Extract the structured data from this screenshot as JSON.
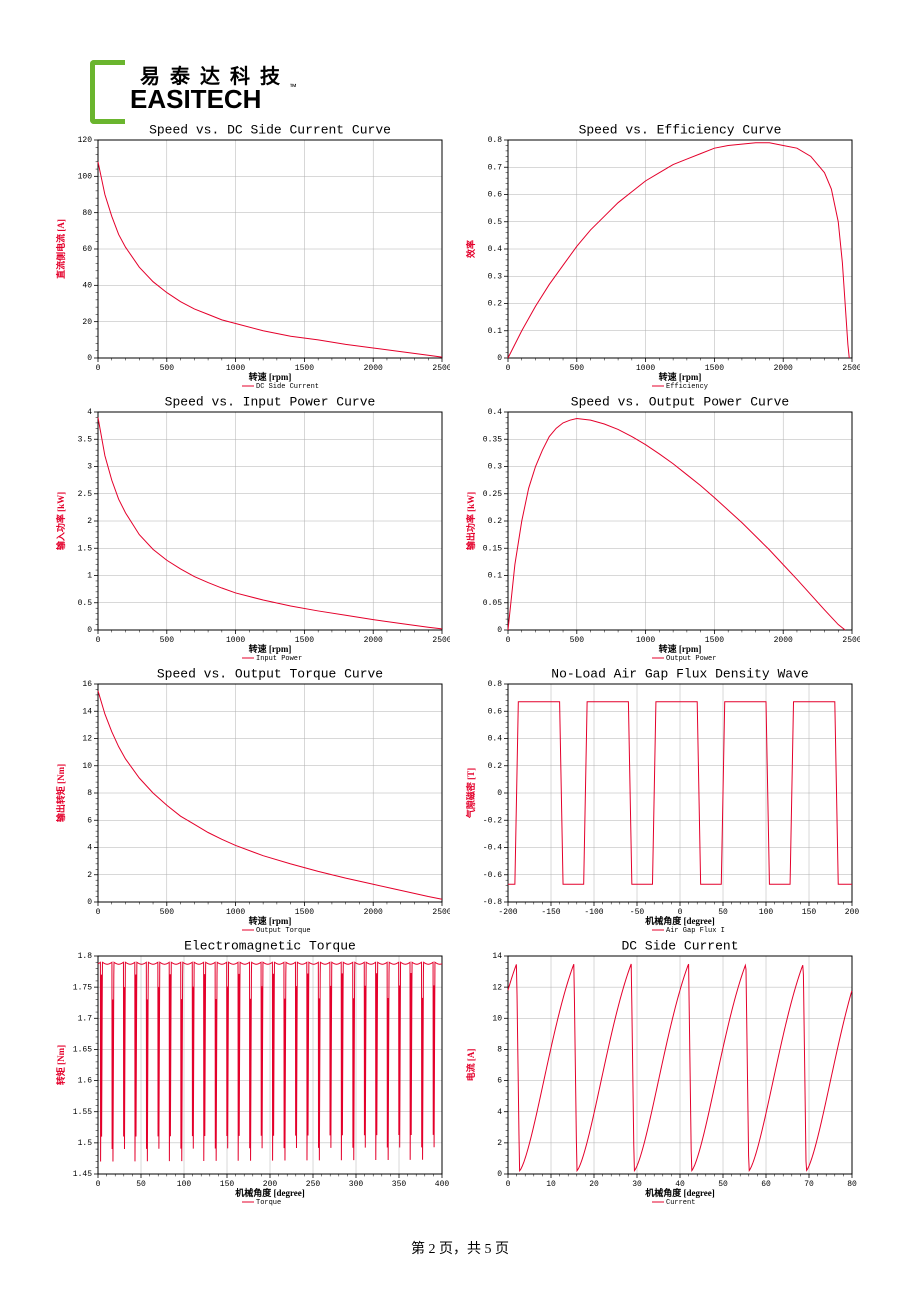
{
  "header": {
    "brand_cn": "易泰达科技",
    "brand_en": "EASITECH",
    "tm": "™"
  },
  "footer": "第 2 页，共 5 页",
  "global": {
    "title_fontsize": 13,
    "title_family": "Courier New",
    "axis_fontsize": 9,
    "axis_family": "SimSun",
    "tick_fontsize": 8,
    "legend_fontsize": 7,
    "line_color": "#e4002b",
    "grid_color": "#b0b0b0",
    "axis_color": "#000000",
    "bg": "#ffffff",
    "tick_len": 4,
    "minor_per_major": 5
  },
  "charts": [
    {
      "id": "c1",
      "title": "Speed vs. DC Side Current Curve",
      "ylabel": "直流侧电流 [A]",
      "xlabel": "转速 [rpm]",
      "legend": "DC Side Current",
      "xlim": [
        0,
        2500
      ],
      "xstep": 500,
      "ylim": [
        0,
        120
      ],
      "ystep": 20,
      "xticks": [
        0,
        500,
        1000,
        1500,
        2000,
        2500
      ],
      "yticks": [
        0,
        20,
        40,
        60,
        80,
        100,
        120
      ],
      "series": [
        {
          "type": "line",
          "data": [
            [
              0,
              108
            ],
            [
              50,
              90
            ],
            [
              100,
              78
            ],
            [
              150,
              68
            ],
            [
              200,
              61
            ],
            [
              300,
              50
            ],
            [
              400,
              42
            ],
            [
              500,
              36
            ],
            [
              600,
              31
            ],
            [
              700,
              27
            ],
            [
              800,
              24
            ],
            [
              900,
              21
            ],
            [
              1000,
              19
            ],
            [
              1200,
              15
            ],
            [
              1400,
              12
            ],
            [
              1600,
              10
            ],
            [
              1800,
              7.5
            ],
            [
              2000,
              5.5
            ],
            [
              2200,
              3.5
            ],
            [
              2400,
              1.5
            ],
            [
              2500,
              0.5
            ]
          ]
        }
      ]
    },
    {
      "id": "c2",
      "title": "Speed vs. Efficiency Curve",
      "ylabel": "效率",
      "xlabel": "转速 [rpm]",
      "legend": "Efficiency",
      "xlim": [
        0,
        2500
      ],
      "xstep": 500,
      "ylim": [
        0,
        0.8
      ],
      "ystep": 0.1,
      "xticks": [
        0,
        500,
        1000,
        1500,
        2000,
        2500
      ],
      "yticks": [
        0,
        0.1,
        0.2,
        0.3,
        0.4,
        0.5,
        0.6,
        0.7,
        0.8
      ],
      "series": [
        {
          "type": "line",
          "data": [
            [
              0,
              0
            ],
            [
              100,
              0.1
            ],
            [
              200,
              0.19
            ],
            [
              300,
              0.27
            ],
            [
              400,
              0.34
            ],
            [
              500,
              0.41
            ],
            [
              600,
              0.47
            ],
            [
              700,
              0.52
            ],
            [
              800,
              0.57
            ],
            [
              900,
              0.61
            ],
            [
              1000,
              0.65
            ],
            [
              1100,
              0.68
            ],
            [
              1200,
              0.71
            ],
            [
              1300,
              0.73
            ],
            [
              1400,
              0.75
            ],
            [
              1500,
              0.77
            ],
            [
              1600,
              0.78
            ],
            [
              1700,
              0.785
            ],
            [
              1800,
              0.79
            ],
            [
              1900,
              0.79
            ],
            [
              2000,
              0.78
            ],
            [
              2100,
              0.77
            ],
            [
              2200,
              0.74
            ],
            [
              2300,
              0.68
            ],
            [
              2350,
              0.62
            ],
            [
              2400,
              0.5
            ],
            [
              2430,
              0.35
            ],
            [
              2450,
              0.2
            ],
            [
              2470,
              0.05
            ],
            [
              2480,
              0
            ]
          ]
        }
      ]
    },
    {
      "id": "c3",
      "title": "Speed vs. Input Power Curve",
      "ylabel": "输入功率 [kW]",
      "xlabel": "转速 [rpm]",
      "legend": "Input Power",
      "xlim": [
        0,
        2500
      ],
      "xstep": 500,
      "ylim": [
        0,
        4
      ],
      "ystep": 0.5,
      "xticks": [
        0,
        500,
        1000,
        1500,
        2000,
        2500
      ],
      "yticks": [
        0,
        0.5,
        1,
        1.5,
        2,
        2.5,
        3,
        3.5,
        4
      ],
      "series": [
        {
          "type": "line",
          "data": [
            [
              0,
              3.9
            ],
            [
              50,
              3.2
            ],
            [
              100,
              2.75
            ],
            [
              150,
              2.4
            ],
            [
              200,
              2.15
            ],
            [
              300,
              1.75
            ],
            [
              400,
              1.48
            ],
            [
              500,
              1.28
            ],
            [
              600,
              1.12
            ],
            [
              700,
              0.98
            ],
            [
              800,
              0.87
            ],
            [
              900,
              0.77
            ],
            [
              1000,
              0.68
            ],
            [
              1200,
              0.55
            ],
            [
              1400,
              0.44
            ],
            [
              1600,
              0.35
            ],
            [
              1800,
              0.27
            ],
            [
              2000,
              0.19
            ],
            [
              2200,
              0.12
            ],
            [
              2400,
              0.05
            ],
            [
              2500,
              0.02
            ]
          ]
        }
      ]
    },
    {
      "id": "c4",
      "title": "Speed vs. Output Power Curve",
      "ylabel": "输出功率 [kW]",
      "xlabel": "转速 [rpm]",
      "legend": "Output Power",
      "xlim": [
        0,
        2500
      ],
      "xstep": 500,
      "ylim": [
        0,
        0.4
      ],
      "ystep": 0.05,
      "xticks": [
        0,
        500,
        1000,
        1500,
        2000,
        2500
      ],
      "yticks": [
        0,
        0.05,
        0.1,
        0.15,
        0.2,
        0.25,
        0.3,
        0.35,
        0.4
      ],
      "series": [
        {
          "type": "line",
          "data": [
            [
              0,
              0
            ],
            [
              50,
              0.12
            ],
            [
              100,
              0.2
            ],
            [
              150,
              0.26
            ],
            [
              200,
              0.3
            ],
            [
              250,
              0.33
            ],
            [
              300,
              0.355
            ],
            [
              350,
              0.37
            ],
            [
              400,
              0.38
            ],
            [
              450,
              0.385
            ],
            [
              500,
              0.388
            ],
            [
              600,
              0.385
            ],
            [
              700,
              0.378
            ],
            [
              800,
              0.368
            ],
            [
              900,
              0.355
            ],
            [
              1000,
              0.34
            ],
            [
              1100,
              0.323
            ],
            [
              1200,
              0.305
            ],
            [
              1300,
              0.285
            ],
            [
              1400,
              0.265
            ],
            [
              1500,
              0.243
            ],
            [
              1600,
              0.22
            ],
            [
              1700,
              0.197
            ],
            [
              1800,
              0.172
            ],
            [
              1900,
              0.147
            ],
            [
              2000,
              0.12
            ],
            [
              2100,
              0.093
            ],
            [
              2200,
              0.065
            ],
            [
              2300,
              0.037
            ],
            [
              2400,
              0.01
            ],
            [
              2450,
              0
            ]
          ]
        }
      ]
    },
    {
      "id": "c5",
      "title": "Speed vs. Output Torque Curve",
      "ylabel": "输出转矩 [Nm]",
      "xlabel": "转速 [rpm]",
      "legend": "Output Torque",
      "xlim": [
        0,
        2500
      ],
      "xstep": 500,
      "ylim": [
        0,
        16
      ],
      "ystep": 2,
      "xticks": [
        0,
        500,
        1000,
        1500,
        2000,
        2500
      ],
      "yticks": [
        0,
        2,
        4,
        6,
        8,
        10,
        12,
        14,
        16
      ],
      "series": [
        {
          "type": "line",
          "data": [
            [
              0,
              15.5
            ],
            [
              50,
              13.8
            ],
            [
              100,
              12.5
            ],
            [
              150,
              11.4
            ],
            [
              200,
              10.5
            ],
            [
              300,
              9.1
            ],
            [
              400,
              8.0
            ],
            [
              500,
              7.1
            ],
            [
              600,
              6.3
            ],
            [
              700,
              5.7
            ],
            [
              800,
              5.1
            ],
            [
              900,
              4.6
            ],
            [
              1000,
              4.15
            ],
            [
              1200,
              3.4
            ],
            [
              1400,
              2.8
            ],
            [
              1600,
              2.25
            ],
            [
              1800,
              1.75
            ],
            [
              2000,
              1.3
            ],
            [
              2200,
              0.85
            ],
            [
              2400,
              0.4
            ],
            [
              2500,
              0.2
            ]
          ]
        }
      ]
    },
    {
      "id": "c6",
      "title": "No-Load Air Gap Flux Density Wave",
      "ylabel": "气隙磁密 [T]",
      "xlabel": "机械角度 [degree]",
      "legend": "Air Gap Flux I",
      "xlim": [
        -200,
        200
      ],
      "xstep": 50,
      "ylim": [
        -0.8,
        0.8
      ],
      "ystep": 0.2,
      "xticks": [
        -200,
        -150,
        -100,
        -50,
        0,
        50,
        100,
        150,
        200
      ],
      "yticks": [
        -0.8,
        -0.6,
        -0.4,
        -0.2,
        0,
        0.2,
        0.4,
        0.6,
        0.8
      ],
      "series": [
        {
          "type": "flux",
          "period": 80,
          "hi": 0.67,
          "lo": -0.67,
          "flat_frac": 0.3,
          "trans_frac": 0.05,
          "phase": -4
        }
      ]
    },
    {
      "id": "c7",
      "title": "Electromagnetic Torque",
      "ylabel": "转矩 [Nm]",
      "xlabel": "机械角度 [degree]",
      "legend": "Torque",
      "xlim": [
        0,
        400
      ],
      "xstep": 50,
      "ylim": [
        1.45,
        1.8
      ],
      "ystep": 0.05,
      "xticks": [
        0,
        50,
        100,
        150,
        200,
        250,
        300,
        350,
        400
      ],
      "yticks": [
        1.45,
        1.5,
        1.55,
        1.6,
        1.65,
        1.7,
        1.75,
        1.8
      ],
      "series": [
        {
          "type": "ripple",
          "period": 13.333,
          "min": 1.47,
          "max": 1.79,
          "phase": 3
        }
      ]
    },
    {
      "id": "c8",
      "title": "DC Side Current",
      "ylabel": "电流 [A]",
      "xlabel": "机械角度 [degree]",
      "legend": "Current",
      "xlim": [
        0,
        80
      ],
      "xstep": 10,
      "ylim": [
        0,
        14
      ],
      "ystep": 2,
      "xticks": [
        0,
        10,
        20,
        30,
        40,
        50,
        60,
        70,
        80
      ],
      "yticks": [
        0,
        2,
        4,
        6,
        8,
        10,
        12,
        14
      ],
      "series": [
        {
          "type": "saw",
          "period": 13.333,
          "lo": 0.2,
          "hi": 13.5,
          "phase": 2,
          "curve": 0.6
        }
      ]
    }
  ]
}
